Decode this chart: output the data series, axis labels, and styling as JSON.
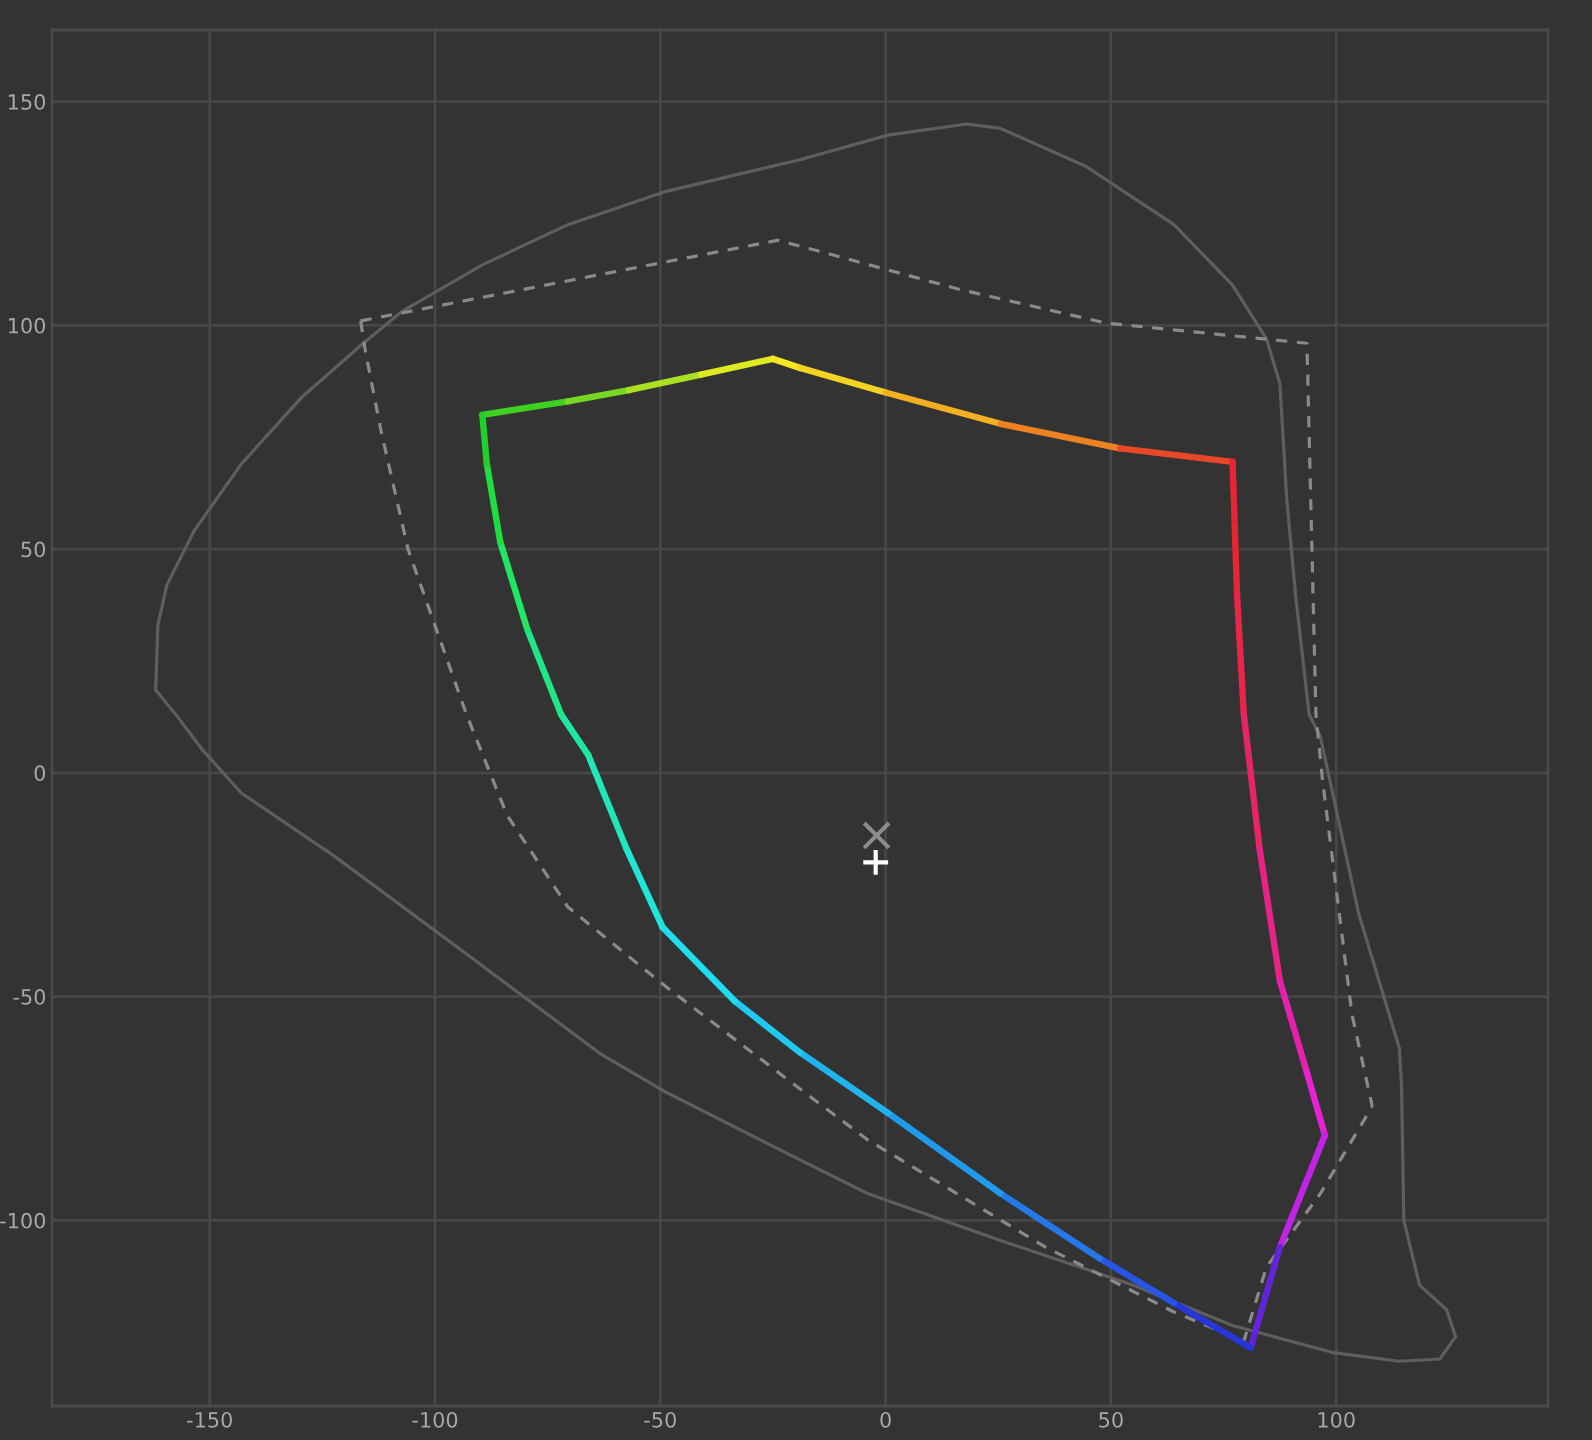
{
  "chart_data": {
    "type": "line",
    "xlim": [
      -185,
      147
    ],
    "ylim": [
      -141.5,
      166
    ],
    "xticks": [
      -150,
      -100,
      -50,
      0,
      50,
      100
    ],
    "yticks": [
      -100,
      -50,
      0,
      50,
      100,
      150
    ],
    "grid": true,
    "series": [
      {
        "line_style": "solid",
        "color": "#5e5e5e",
        "x": [
          -162,
          -161.5,
          -159.5,
          -153.5,
          -143,
          -129.5,
          -116.5,
          -107.5,
          -89.5,
          -70.5,
          -48.5,
          -19,
          0.5,
          18,
          25.5,
          44.5,
          64,
          77,
          84.5,
          87.5,
          89,
          91,
          94,
          96.5,
          105,
          114,
          114.5,
          115,
          118.5,
          124.5,
          126.5
        ],
        "values": [
          18.5,
          33,
          42,
          54,
          69,
          84,
          95.5,
          103,
          113.5,
          122.5,
          130,
          137,
          142.5,
          145,
          144,
          135.5,
          122.5,
          109,
          97,
          87,
          61.5,
          39.5,
          13,
          8,
          -31.5,
          -61.5,
          -70,
          -100,
          -114.5,
          -120,
          -126
        ]
      },
      {
        "line_style": "solid",
        "color": "#5e5e5e",
        "x": [
          -162,
          -157.5,
          -151.5,
          -143,
          -122.5,
          -93,
          -63,
          -48.5,
          -19,
          -4,
          25.5,
          55,
          77,
          99,
          114,
          123,
          126.5
        ],
        "values": [
          18.5,
          13,
          5,
          -4.5,
          -18.5,
          -40.5,
          -63,
          -71.5,
          -86.5,
          -94,
          -104.5,
          -114.5,
          -123.5,
          -129.5,
          -131.5,
          -131,
          -126
        ]
      },
      {
        "line_style": "dashed",
        "color": "#8a8a8a",
        "x": [
          -116.5,
          -24,
          -14.5,
          16.5,
          49,
          93.5,
          95.5,
          97,
          103.5,
          108
        ],
        "values": [
          101,
          119,
          116.5,
          108,
          100.5,
          96,
          13,
          -2,
          -54,
          -74.5
        ]
      },
      {
        "line_style": "dashed",
        "color": "#8a8a8a",
        "x": [
          -116.5,
          -115.5,
          -112,
          -106,
          -93,
          -84,
          -70.5,
          -48.5,
          -20.5,
          -4,
          35.5,
          64,
          79.5,
          84.5,
          96.5,
          108
        ],
        "values": [
          101,
          94.5,
          76.5,
          50,
          13,
          -9.5,
          -30,
          -48,
          -69.5,
          -82,
          -106,
          -120.5,
          -127,
          -110.5,
          -94,
          -74.5
        ]
      },
      {
        "line_style": "solid",
        "color": "#3fd022",
        "x": [
          -89.5,
          -70.5
        ],
        "values": [
          80,
          83
        ]
      },
      {
        "line_style": "solid",
        "color": "#75d822",
        "x": [
          -70.5,
          -57
        ],
        "values": [
          83,
          85.5
        ]
      },
      {
        "line_style": "solid",
        "color": "#abe122",
        "x": [
          -57,
          -41
        ],
        "values": [
          85.5,
          89
        ]
      },
      {
        "line_style": "solid",
        "color": "#deea22",
        "x": [
          -41,
          -25
        ],
        "values": [
          89,
          92.5
        ]
      },
      {
        "line_style": "solid",
        "color": "#f5e822",
        "x": [
          -25,
          -19
        ],
        "values": [
          92.5,
          90.5
        ]
      },
      {
        "line_style": "solid",
        "color": "#f5d322",
        "x": [
          -19,
          0
        ],
        "values": [
          90.5,
          85
        ]
      },
      {
        "line_style": "solid",
        "color": "#f2af22",
        "x": [
          0,
          25.5
        ],
        "values": [
          85,
          78
        ]
      },
      {
        "line_style": "solid",
        "color": "#ee8222",
        "x": [
          25.5,
          52
        ],
        "values": [
          78,
          72.5
        ]
      },
      {
        "line_style": "solid",
        "color": "#e94828",
        "x": [
          52,
          77
        ],
        "values": [
          72.5,
          69.5
        ]
      },
      {
        "line_style": "solid",
        "color": "#e62632",
        "x": [
          77,
          78
        ],
        "values": [
          69.5,
          39.5
        ]
      },
      {
        "line_style": "solid",
        "color": "#e6264a",
        "x": [
          78,
          79.5
        ],
        "values": [
          39.5,
          13
        ]
      },
      {
        "line_style": "solid",
        "color": "#e62663",
        "x": [
          79.5,
          83
        ],
        "values": [
          13,
          -17
        ]
      },
      {
        "line_style": "solid",
        "color": "#e62485",
        "x": [
          83,
          87.5
        ],
        "values": [
          -17,
          -46.5
        ]
      },
      {
        "line_style": "solid",
        "color": "#e622ad",
        "x": [
          87.5,
          93.5
        ],
        "values": [
          -46.5,
          -67
        ]
      },
      {
        "line_style": "solid",
        "color": "#e622d3",
        "x": [
          93.5,
          97.5
        ],
        "values": [
          -67,
          -81
        ]
      },
      {
        "line_style": "solid",
        "color": "#c222e6",
        "x": [
          87.5,
          97.5
        ],
        "values": [
          -106,
          -81
        ]
      },
      {
        "line_style": "solid",
        "color": "#6224d9",
        "x": [
          81,
          87.5
        ],
        "values": [
          -128.5,
          -106
        ]
      },
      {
        "line_style": "solid",
        "color": "#2736d9",
        "x": [
          64,
          81
        ],
        "values": [
          -118.5,
          -128.5
        ]
      },
      {
        "line_style": "solid",
        "color": "#2855e6",
        "x": [
          47.5,
          64
        ],
        "values": [
          -108.5,
          -118.5
        ]
      },
      {
        "line_style": "solid",
        "color": "#2478e8",
        "x": [
          25.5,
          47.5
        ],
        "values": [
          -94,
          -108.5
        ]
      },
      {
        "line_style": "solid",
        "color": "#209bec",
        "x": [
          0.5,
          25.5
        ],
        "values": [
          -76,
          -94
        ]
      },
      {
        "line_style": "solid",
        "color": "#20b4ef",
        "x": [
          -19,
          0.5
        ],
        "values": [
          -62.5,
          -76
        ]
      },
      {
        "line_style": "solid",
        "color": "#20c8f0",
        "x": [
          -33.5,
          -19
        ],
        "values": [
          -51,
          -62.5
        ]
      },
      {
        "line_style": "solid",
        "color": "#20dcef",
        "x": [
          -49.5,
          -33.5
        ],
        "values": [
          -34.5,
          -51
        ]
      },
      {
        "line_style": "solid",
        "color": "#20e6d9",
        "x": [
          -57.5,
          -49.5
        ],
        "values": [
          -17,
          -34.5
        ]
      },
      {
        "line_style": "solid",
        "color": "#20e6b9",
        "x": [
          -66,
          -57.5
        ],
        "values": [
          4,
          -17
        ]
      },
      {
        "line_style": "solid",
        "color": "#20e6a0",
        "x": [
          -72,
          -66
        ],
        "values": [
          13,
          4
        ]
      },
      {
        "line_style": "solid",
        "color": "#20e687",
        "x": [
          -79.5,
          -72
        ],
        "values": [
          32,
          13
        ]
      },
      {
        "line_style": "solid",
        "color": "#20e664",
        "x": [
          -85.5,
          -79.5
        ],
        "values": [
          51.5,
          32
        ]
      },
      {
        "line_style": "solid",
        "color": "#21dc41",
        "x": [
          -88.5,
          -85.5
        ],
        "values": [
          69,
          51.5
        ]
      },
      {
        "line_style": "solid",
        "color": "#22cf2a",
        "x": [
          -89.5,
          -88.5
        ],
        "values": [
          80,
          69
        ]
      },
      {
        "type": "scatter",
        "marker": "x",
        "color": "#8c8c8c",
        "x": [
          -2
        ],
        "values": [
          -14
        ]
      },
      {
        "type": "scatter",
        "marker": "cross",
        "color": "#ffffff",
        "x": [
          -2.2
        ],
        "values": [
          -20
        ]
      }
    ]
  }
}
